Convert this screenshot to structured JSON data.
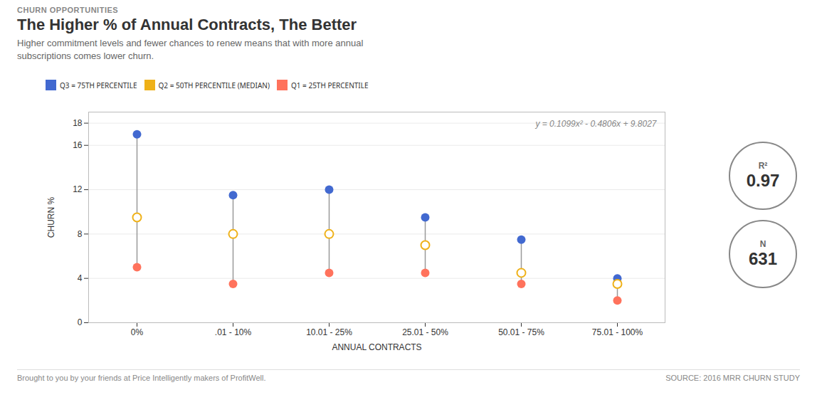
{
  "chart_data": {
    "type": "scatter",
    "subtitle": "CHURN OPPORTUNITIES",
    "title": "The Higher % of Annual Contracts, The Better",
    "description": "Higher commitment levels and fewer chances to renew means that with more annual\nsubscriptions comes lower churn.",
    "categories": [
      "0%",
      ".01 - 10%",
      "10.01 - 25%",
      "25.01 - 50%",
      "50.01 - 75%",
      "75.01 - 100%"
    ],
    "series": [
      {
        "name": "Q3 = 75TH PERCENTILE",
        "marker": "circle",
        "values": [
          17.0,
          11.5,
          12.0,
          9.5,
          7.5,
          4.0
        ]
      },
      {
        "name": "Q2 = 50TH PERCENTILE (MEDIAN)",
        "marker": "circle_open",
        "values": [
          9.5,
          8.0,
          8.0,
          7.0,
          4.5,
          3.5
        ]
      },
      {
        "name": "Q1 = 25TH PERCENTILE",
        "marker": "circle",
        "values": [
          5.0,
          3.5,
          4.5,
          4.5,
          3.5,
          2.0
        ]
      }
    ],
    "xlabel": "ANNUAL CONTRACTS",
    "ylabel": "CHURN %",
    "ylim": [
      0,
      19
    ],
    "yticks": [
      0,
      4,
      8,
      12,
      16,
      18
    ],
    "grid": true,
    "legend": "top",
    "annotations": [
      "y = 0.1099x² - 0.4806x + 9.8027"
    ],
    "stats": [
      {
        "label": "R²",
        "value": 0.97
      },
      {
        "label": "N",
        "value": 631
      }
    ],
    "caption": "Brought to you by your friends at Price Intelligently makers of ProfitWell.",
    "source": "SOURCE: 2016 MRR CHURN STUDY"
  }
}
